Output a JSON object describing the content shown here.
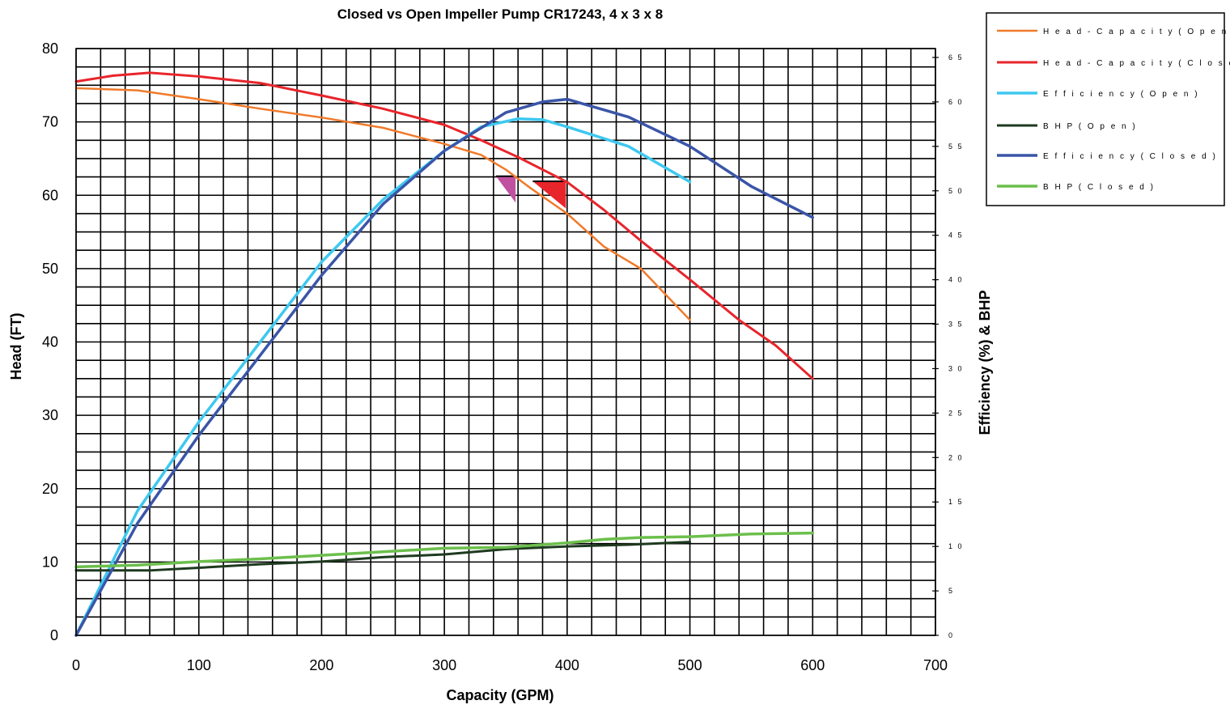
{
  "chart_data": {
    "type": "line",
    "title": "Closed vs Open Impeller Pump CR17243, 4 x 3 x 8",
    "xlabel": "Capacity (GPM)",
    "ylabel": "Head (FT)",
    "y2label": "Efficiency (%) & BHP",
    "xlim": [
      0,
      700
    ],
    "ylim": [
      0,
      80
    ],
    "y2lim": [
      0,
      66
    ],
    "x_ticks": [
      "0",
      "100",
      "200",
      "300",
      "400",
      "500",
      "600",
      "700"
    ],
    "y_ticks": [
      "0",
      "10",
      "20",
      "30",
      "40",
      "50",
      "60",
      "70",
      "80"
    ],
    "y2_ticks": [
      "0",
      "5",
      "10",
      "15",
      "20",
      "25",
      "30",
      "35",
      "40",
      "45",
      "50",
      "55",
      "60",
      "65"
    ],
    "grid": true,
    "legend_position": "top-right outside",
    "series": [
      {
        "name": "Head-Capacity (Open)",
        "axis": "left",
        "color": "#f07a2a",
        "width": 2.5,
        "points": [
          [
            0,
            74.6
          ],
          [
            50,
            74.3
          ],
          [
            100,
            73.1
          ],
          [
            150,
            71.8
          ],
          [
            200,
            70.6
          ],
          [
            250,
            69.2
          ],
          [
            300,
            67.0
          ],
          [
            330,
            65.5
          ],
          [
            350,
            63.5
          ],
          [
            370,
            61.0
          ],
          [
            400,
            57.5
          ],
          [
            430,
            53.0
          ],
          [
            460,
            50.0
          ],
          [
            500,
            43.0
          ]
        ]
      },
      {
        "name": "Head-Capacity (Closed)",
        "axis": "left",
        "color": "#e8252b",
        "width": 3,
        "points": [
          [
            0,
            75.5
          ],
          [
            30,
            76.3
          ],
          [
            60,
            76.7
          ],
          [
            100,
            76.2
          ],
          [
            150,
            75.3
          ],
          [
            200,
            73.6
          ],
          [
            250,
            71.8
          ],
          [
            300,
            69.6
          ],
          [
            330,
            67.5
          ],
          [
            360,
            65.2
          ],
          [
            400,
            61.8
          ],
          [
            430,
            58.0
          ],
          [
            460,
            53.8
          ],
          [
            500,
            48.5
          ],
          [
            540,
            43.0
          ],
          [
            570,
            39.5
          ],
          [
            600,
            35.0
          ]
        ]
      },
      {
        "name": "Efficiency (Open)",
        "axis": "right",
        "color": "#3ec8f0",
        "width": 3.5,
        "points": [
          [
            0,
            0
          ],
          [
            25,
            7
          ],
          [
            50,
            14
          ],
          [
            100,
            24
          ],
          [
            150,
            33
          ],
          [
            200,
            42
          ],
          [
            250,
            49
          ],
          [
            300,
            54.5
          ],
          [
            330,
            57.2
          ],
          [
            360,
            58.1
          ],
          [
            380,
            58.0
          ],
          [
            400,
            57.2
          ],
          [
            450,
            55.0
          ],
          [
            500,
            51.0
          ]
        ]
      },
      {
        "name": "BHP (Open)",
        "axis": "right",
        "color": "#1e3a20",
        "width": 3,
        "points": [
          [
            0,
            7.3
          ],
          [
            60,
            7.3
          ],
          [
            100,
            7.6
          ],
          [
            150,
            8.0
          ],
          [
            200,
            8.3
          ],
          [
            250,
            8.8
          ],
          [
            300,
            9.1
          ],
          [
            350,
            9.7
          ],
          [
            400,
            10.0
          ],
          [
            450,
            10.2
          ],
          [
            500,
            10.5
          ]
        ]
      },
      {
        "name": "Efficiency (Closed)",
        "axis": "right",
        "color": "#3a55a8",
        "width": 3.5,
        "points": [
          [
            0,
            0
          ],
          [
            50,
            12.6
          ],
          [
            100,
            22.5
          ],
          [
            150,
            31.5
          ],
          [
            200,
            40.5
          ],
          [
            250,
            48.5
          ],
          [
            300,
            54.5
          ],
          [
            350,
            58.8
          ],
          [
            380,
            60.0
          ],
          [
            400,
            60.3
          ],
          [
            450,
            58.3
          ],
          [
            500,
            55.0
          ],
          [
            550,
            50.5
          ],
          [
            600,
            47.0
          ]
        ]
      },
      {
        "name": "BHP (Closed)",
        "axis": "right",
        "color": "#6cbf4c",
        "width": 3.5,
        "points": [
          [
            0,
            7.7
          ],
          [
            50,
            7.9
          ],
          [
            100,
            8.3
          ],
          [
            150,
            8.6
          ],
          [
            200,
            9.0
          ],
          [
            250,
            9.4
          ],
          [
            300,
            9.8
          ],
          [
            350,
            9.9
          ],
          [
            400,
            10.4
          ],
          [
            430,
            10.8
          ],
          [
            460,
            11.0
          ],
          [
            500,
            11.1
          ],
          [
            550,
            11.4
          ],
          [
            600,
            11.5
          ]
        ]
      }
    ],
    "annotations": [
      {
        "shape": "triangle",
        "color": "#c050a0",
        "points": [
          [
            342,
            62.6
          ],
          [
            358,
            62.6
          ],
          [
            358,
            59.0
          ]
        ]
      },
      {
        "shape": "triangle",
        "color": "#e8252b",
        "points": [
          [
            372,
            61.9
          ],
          [
            399,
            61.9
          ],
          [
            399,
            58.2
          ]
        ]
      }
    ]
  },
  "legend_labels": [
    "H e a d - C a p a c i t y  ( O p e n )",
    "H e a d - C a p a c i t y ( C l o s e d )",
    "E f f i c i e n c y ( O p e n )",
    "B H P ( O p e n )",
    "E f f i c i e n c y ( C l o s e d )",
    "B H P ( C l o s e d )"
  ]
}
